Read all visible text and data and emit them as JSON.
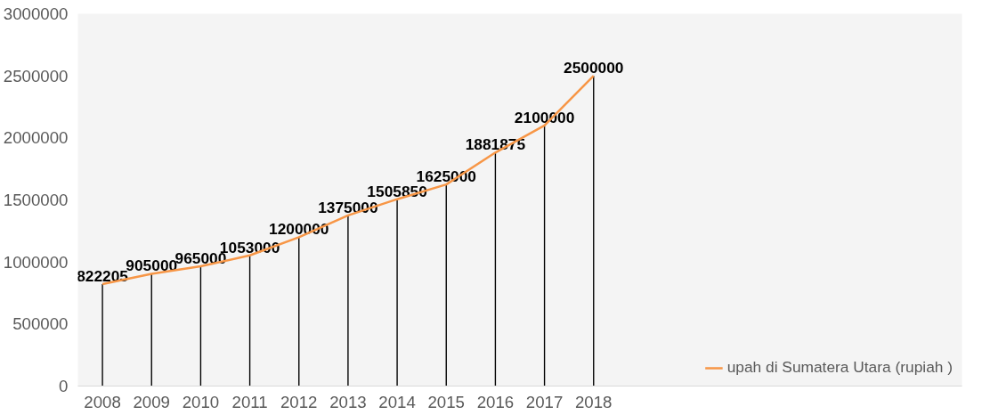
{
  "chart_data": {
    "type": "line",
    "categories": [
      "2008",
      "2009",
      "2010",
      "2011",
      "2012",
      "2013",
      "2014",
      "2015",
      "2016",
      "2017",
      "2018",
      null,
      null,
      null,
      null,
      null,
      null,
      null
    ],
    "series": [
      {
        "type": "bar",
        "color": "#000000",
        "values": [
          822205,
          905000,
          965000,
          1053000,
          1200000,
          1375000,
          1505850,
          1625000,
          1881875,
          2100000,
          2500000,
          null,
          null,
          null,
          null,
          null,
          null,
          null
        ],
        "value_labels": [
          "822205",
          "905000",
          "965000",
          "1053000",
          "1200000",
          "1375000",
          "1505850",
          "1625000",
          "1881875",
          "2100000",
          "2500000",
          null,
          null,
          null,
          null,
          null,
          null,
          null
        ]
      },
      {
        "name": "upah di Sumatera Utara (rupiah )",
        "color": "#f79646",
        "values": [
          822205,
          905000,
          965000,
          1053000,
          1200000,
          1375000,
          1505850,
          1625000,
          1881875,
          2100000,
          2500000,
          null,
          null,
          null,
          null,
          null,
          null,
          null
        ]
      }
    ],
    "ylim": [
      0,
      3000000
    ],
    "yticks": [
      0,
      500000,
      1000000,
      1500000,
      2000000,
      2500000,
      3000000
    ],
    "grid": false,
    "legend": "bottom right"
  }
}
